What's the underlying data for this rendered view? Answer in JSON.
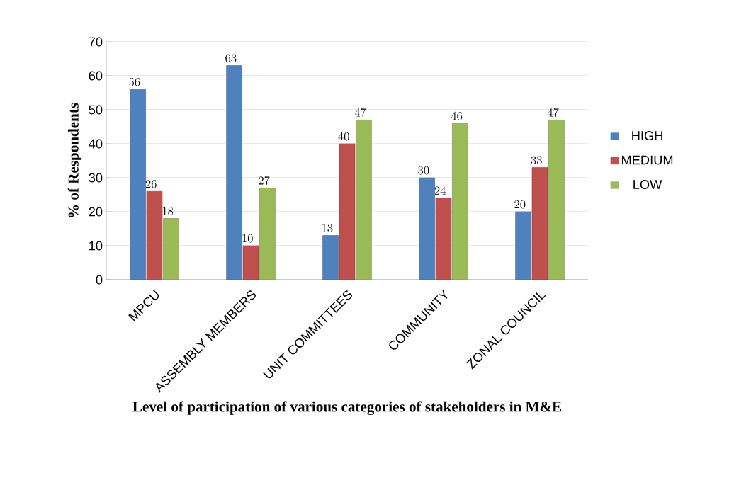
{
  "chart_data": {
    "type": "bar",
    "xlabel": "Level of participation  of various categories of stakeholders in M&E",
    "ylabel": "% of Respondents",
    "categories": [
      "MPCU",
      "ASSEMBLY MEMBERS",
      "UNIT COMMITTEES",
      "COMMUNITY",
      "ZONAL COUNCIL"
    ],
    "series": [
      {
        "name": "HIGH",
        "color": "#4f81bd",
        "values": [
          56,
          63,
          13,
          30,
          20
        ]
      },
      {
        "name": "MEDIUM",
        "color": "#c0504d",
        "values": [
          26,
          10,
          40,
          24,
          33
        ]
      },
      {
        "name": "LOW",
        "color": "#9bbb59",
        "values": [
          18,
          27,
          47,
          46,
          47
        ]
      }
    ],
    "ylim": [
      0,
      70
    ],
    "yticks": [
      0,
      10,
      20,
      30,
      40,
      50,
      60,
      70
    ],
    "grid": "y",
    "legend": "right",
    "data_labels": true
  }
}
